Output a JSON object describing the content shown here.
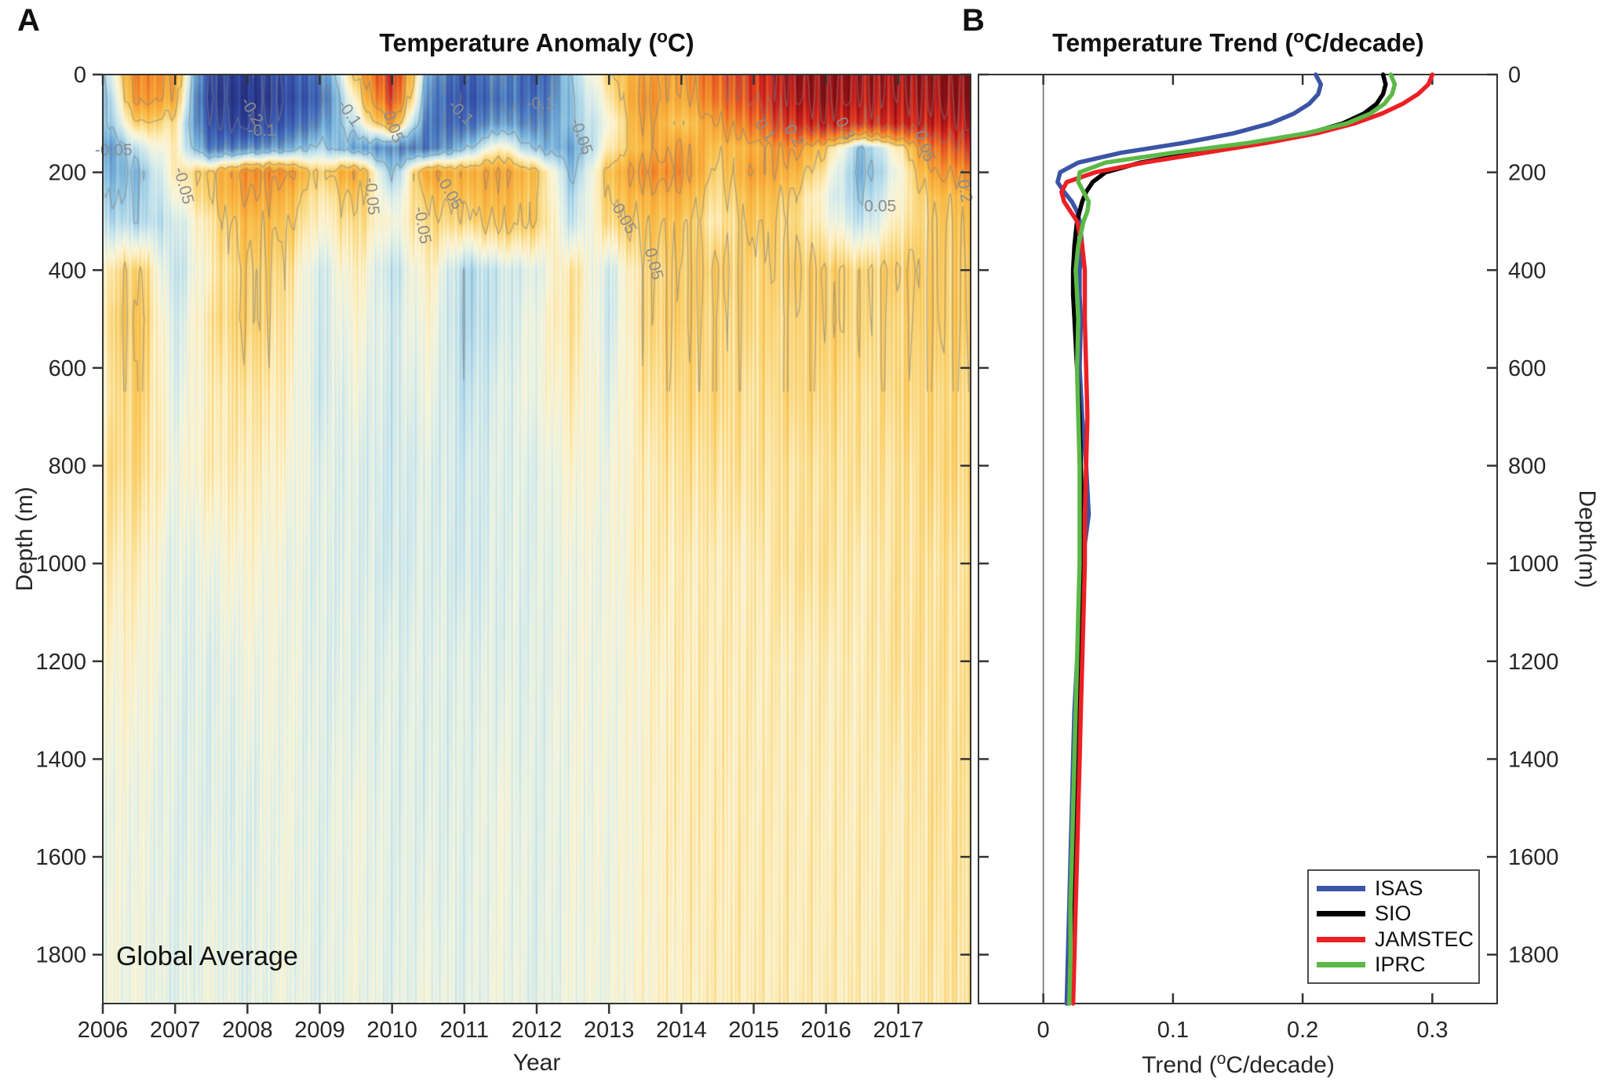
{
  "figure": {
    "panel_a_label": "A",
    "panel_b_label": "B"
  },
  "panel_a": {
    "title_parts": {
      "pre": "Temperature Anomaly (",
      "sup": "o",
      "post": "C)"
    },
    "xlabel": "Year",
    "ylabel": "Depth (m)",
    "annotation": "Global Average",
    "xticklabels": [
      "2006",
      "2007",
      "2008",
      "2009",
      "2010",
      "2011",
      "2012",
      "2013",
      "2014",
      "2015",
      "2016",
      "2017"
    ],
    "yticklabels": [
      "0",
      "200",
      "400",
      "600",
      "800",
      "1000",
      "1200",
      "1400",
      "1600",
      "1800"
    ]
  },
  "panel_b": {
    "title_parts": {
      "pre": "Temperature Trend (",
      "sup": "o",
      "post": "C/decade)"
    },
    "xlabel_parts": {
      "pre": "Trend (",
      "sup": "o",
      "post": "C/decade)"
    },
    "ylabel_right": "Depth(m)",
    "xticklabels": [
      "0",
      "0.1",
      "0.2",
      "0.3"
    ],
    "yticklabels": [
      "0",
      "200",
      "400",
      "600",
      "800",
      "1000",
      "1200",
      "1400",
      "1600",
      "1800"
    ],
    "legend": [
      "ISAS",
      "SIO",
      "JAMSTEC",
      "IPRC"
    ]
  },
  "chart_data": [
    {
      "type": "heatmap",
      "title": "Temperature Anomaly (°C)",
      "xlabel": "Year",
      "ylabel": "Depth (m)",
      "annotation": "Global Average",
      "xlim": [
        2006,
        2018
      ],
      "ylim": [
        0,
        1900
      ],
      "xticks": [
        2006,
        2007,
        2008,
        2009,
        2010,
        2011,
        2012,
        2013,
        2014,
        2015,
        2016,
        2017
      ],
      "yticks": [
        0,
        200,
        400,
        600,
        800,
        1000,
        1200,
        1400,
        1600,
        1800
      ],
      "x_years": [
        2006,
        2006.5,
        2007,
        2007.5,
        2008,
        2008.5,
        2009,
        2009.5,
        2010,
        2010.5,
        2011,
        2011.5,
        2012,
        2012.5,
        2013,
        2013.5,
        2014,
        2014.5,
        2015,
        2015.5,
        2016,
        2016.5,
        2017,
        2017.5,
        2018
      ],
      "depths": [
        0,
        50,
        100,
        150,
        200,
        250,
        300,
        400,
        500,
        650,
        800,
        1000,
        1200,
        1500,
        1900
      ],
      "anomaly_grid": [
        [
          -0.06,
          0.14,
          0.1,
          -0.2,
          -0.24,
          -0.18,
          -0.12,
          0.06,
          0.24,
          -0.08,
          -0.16,
          -0.1,
          -0.16,
          -0.04,
          0.04,
          0.1,
          0.1,
          0.17,
          0.22,
          0.3,
          0.34,
          0.3,
          0.3,
          0.32,
          0.35
        ],
        [
          -0.08,
          0.12,
          0.08,
          -0.22,
          -0.26,
          -0.2,
          -0.14,
          0.02,
          0.2,
          -0.1,
          -0.18,
          -0.12,
          -0.14,
          -0.05,
          0.02,
          0.12,
          0.08,
          0.15,
          0.2,
          0.28,
          0.32,
          0.28,
          0.28,
          0.3,
          0.33
        ],
        [
          -0.07,
          0.05,
          0.03,
          -0.18,
          -0.22,
          -0.16,
          -0.1,
          -0.02,
          0.1,
          -0.12,
          -0.14,
          -0.08,
          -0.11,
          -0.05,
          0.0,
          0.1,
          0.05,
          0.1,
          0.15,
          0.22,
          0.26,
          0.22,
          0.24,
          0.26,
          0.28
        ],
        [
          -0.1,
          -0.02,
          0.02,
          -0.12,
          -0.1,
          -0.08,
          -0.04,
          -0.08,
          -0.1,
          -0.12,
          -0.06,
          0.02,
          -0.06,
          -0.08,
          0.02,
          0.08,
          0.1,
          0.06,
          0.08,
          0.12,
          0.05,
          -0.06,
          0.02,
          0.15,
          0.2
        ],
        [
          -0.07,
          -0.06,
          0.02,
          0.06,
          0.12,
          0.12,
          0.04,
          0.1,
          -0.06,
          0.1,
          0.08,
          0.1,
          0.06,
          -0.06,
          0.06,
          0.12,
          0.12,
          0.04,
          0.1,
          0.08,
          0.02,
          -0.07,
          0.0,
          0.1,
          0.12
        ],
        [
          -0.05,
          -0.05,
          0.0,
          0.05,
          0.1,
          0.08,
          0.02,
          0.06,
          -0.02,
          0.06,
          0.06,
          0.08,
          0.05,
          -0.04,
          0.05,
          0.08,
          0.08,
          0.03,
          0.07,
          0.05,
          0.0,
          -0.05,
          0.01,
          0.06,
          0.07
        ],
        [
          -0.03,
          -0.04,
          -0.02,
          0.03,
          0.07,
          0.06,
          0.01,
          0.04,
          0.0,
          0.04,
          0.04,
          0.06,
          0.05,
          -0.03,
          0.04,
          0.06,
          0.06,
          0.02,
          0.06,
          0.04,
          0.01,
          -0.03,
          0.02,
          0.05,
          0.06
        ],
        [
          0.02,
          0.05,
          -0.03,
          0.02,
          0.05,
          0.04,
          -0.02,
          0.02,
          -0.03,
          0.02,
          -0.04,
          -0.02,
          -0.01,
          0.03,
          -0.02,
          0.04,
          0.05,
          0.05,
          0.04,
          0.05,
          0.05,
          0.04,
          0.05,
          0.05,
          0.05
        ],
        [
          0.03,
          0.06,
          -0.02,
          0.03,
          0.05,
          0.03,
          -0.02,
          0.01,
          -0.02,
          0.01,
          -0.04,
          -0.02,
          0.0,
          0.03,
          -0.02,
          0.04,
          0.05,
          0.04,
          0.04,
          0.04,
          0.05,
          0.04,
          0.04,
          0.05,
          0.05
        ],
        [
          0.02,
          0.05,
          -0.01,
          0.02,
          0.03,
          0.02,
          -0.02,
          0.0,
          -0.02,
          0.0,
          -0.03,
          -0.01,
          0.0,
          0.02,
          -0.01,
          0.03,
          0.04,
          0.04,
          0.03,
          0.04,
          0.04,
          0.03,
          0.04,
          0.04,
          0.04
        ],
        [
          0.03,
          0.04,
          0.0,
          0.02,
          0.02,
          0.01,
          -0.01,
          -0.01,
          -0.02,
          -0.01,
          -0.02,
          -0.01,
          -0.01,
          0.01,
          0.0,
          0.02,
          0.03,
          0.03,
          0.03,
          0.03,
          0.03,
          0.03,
          0.03,
          0.04,
          0.04
        ],
        [
          0.02,
          0.02,
          -0.01,
          0.0,
          0.01,
          0.0,
          -0.01,
          -0.01,
          -0.02,
          -0.01,
          -0.02,
          -0.01,
          -0.01,
          0.0,
          0.0,
          0.02,
          0.02,
          0.02,
          0.02,
          0.03,
          0.03,
          0.02,
          0.03,
          0.03,
          0.03
        ],
        [
          0.01,
          0.01,
          -0.01,
          -0.01,
          0.0,
          0.0,
          -0.01,
          -0.01,
          -0.01,
          -0.01,
          -0.01,
          -0.01,
          -0.01,
          0.0,
          0.0,
          0.01,
          0.02,
          0.02,
          0.02,
          0.02,
          0.02,
          0.02,
          0.03,
          0.03,
          0.03
        ],
        [
          0.0,
          0.0,
          -0.01,
          -0.01,
          -0.01,
          0.0,
          -0.01,
          0.0,
          -0.01,
          -0.01,
          -0.01,
          0.0,
          -0.01,
          0.0,
          0.0,
          0.01,
          0.02,
          0.02,
          0.02,
          0.02,
          0.02,
          0.02,
          0.02,
          0.03,
          0.03
        ],
        [
          0.0,
          0.0,
          -0.01,
          0.0,
          -0.01,
          0.0,
          -0.01,
          0.0,
          -0.01,
          0.0,
          -0.01,
          0.0,
          -0.01,
          0.0,
          0.0,
          0.01,
          0.015,
          0.02,
          0.02,
          0.02,
          0.02,
          0.02,
          0.02,
          0.025,
          0.03
        ]
      ],
      "contour_levels": [
        -0.2,
        -0.1,
        -0.05,
        0.05,
        0.1,
        0.2,
        0.3
      ],
      "contour_labels": [
        {
          "text": "-0.05",
          "year": 2006.15,
          "depth": 165,
          "rot": 0
        },
        {
          "text": "-0.05",
          "year": 2007.05,
          "depth": 230,
          "rot": 75
        },
        {
          "text": "-0.2",
          "year": 2008.0,
          "depth": 80,
          "rot": 60
        },
        {
          "text": "-0.1",
          "year": 2008.2,
          "depth": 125,
          "rot": 0
        },
        {
          "text": "-0.1",
          "year": 2009.35,
          "depth": 85,
          "rot": 55
        },
        {
          "text": "-0.05",
          "year": 2009.65,
          "depth": 250,
          "rot": 85
        },
        {
          "text": "0.05",
          "year": 2009.95,
          "depth": 110,
          "rot": 70
        },
        {
          "text": "-0.05",
          "year": 2010.35,
          "depth": 310,
          "rot": 80
        },
        {
          "text": "0.05",
          "year": 2010.75,
          "depth": 250,
          "rot": 60
        },
        {
          "text": "-0.1",
          "year": 2010.9,
          "depth": 85,
          "rot": 45
        },
        {
          "text": "-0.1",
          "year": 2012.05,
          "depth": 70,
          "rot": 0
        },
        {
          "text": "-0.05",
          "year": 2012.55,
          "depth": 130,
          "rot": 70
        },
        {
          "text": "0.05",
          "year": 2013.15,
          "depth": 300,
          "rot": 60
        },
        {
          "text": "0.05",
          "year": 2013.55,
          "depth": 390,
          "rot": 75
        },
        {
          "text": "0.1",
          "year": 2015.1,
          "depth": 120,
          "rot": 55
        },
        {
          "text": "0.2",
          "year": 2015.5,
          "depth": 130,
          "rot": 60
        },
        {
          "text": "0.3",
          "year": 2016.2,
          "depth": 115,
          "rot": 65
        },
        {
          "text": "0.05",
          "year": 2016.75,
          "depth": 280,
          "rot": 0
        },
        {
          "text": "0.05",
          "year": 2017.3,
          "depth": 150,
          "rot": 70
        },
        {
          "text": "0.2",
          "year": 2017.85,
          "depth": 240,
          "rot": 80
        }
      ],
      "colormap": [
        [
          -0.32,
          "#232a72"
        ],
        [
          -0.24,
          "#2b3a8f"
        ],
        [
          -0.17,
          "#3854ab"
        ],
        [
          -0.12,
          "#4a76bd"
        ],
        [
          -0.08,
          "#6ea7d4"
        ],
        [
          -0.05,
          "#97c9e4"
        ],
        [
          -0.03,
          "#bfe0ec"
        ],
        [
          -0.015,
          "#d9ecea"
        ],
        [
          -0.004,
          "#e9f3e4"
        ],
        [
          0.006,
          "#faf5da"
        ],
        [
          0.02,
          "#fdedbb"
        ],
        [
          0.035,
          "#fbdc8a"
        ],
        [
          0.055,
          "#f9c656"
        ],
        [
          0.08,
          "#f8b13e"
        ],
        [
          0.12,
          "#f3922f"
        ],
        [
          0.16,
          "#ec6b27"
        ],
        [
          0.2,
          "#e14523"
        ],
        [
          0.25,
          "#cc241f"
        ],
        [
          0.3,
          "#a51418"
        ],
        [
          0.36,
          "#7c0e12"
        ]
      ]
    },
    {
      "type": "line",
      "title": "Temperature Trend (°C/decade)",
      "xlabel": "Trend (°C/decade)",
      "ylabel_right": "Depth(m)",
      "xlim": [
        -0.05,
        0.35
      ],
      "ylim": [
        0,
        1900
      ],
      "xticks": [
        0,
        0.1,
        0.2,
        0.3
      ],
      "yticks": [
        0,
        200,
        400,
        600,
        800,
        1000,
        1200,
        1400,
        1600,
        1800
      ],
      "legend_position": "bottom-right",
      "zero_line": 0,
      "depth": [
        0,
        20,
        40,
        60,
        80,
        100,
        120,
        140,
        160,
        180,
        200,
        220,
        240,
        260,
        280,
        300,
        350,
        400,
        450,
        500,
        600,
        700,
        800,
        900,
        1000,
        1100,
        1200,
        1300,
        1400,
        1500,
        1600,
        1700,
        1800,
        1900
      ],
      "series": [
        {
          "name": "ISAS",
          "color": "#3b54a5",
          "trend": [
            0.21,
            0.214,
            0.212,
            0.205,
            0.193,
            0.175,
            0.147,
            0.108,
            0.06,
            0.027,
            0.013,
            0.011,
            0.016,
            0.022,
            0.026,
            0.028,
            0.03,
            0.028,
            0.028,
            0.029,
            0.028,
            0.03,
            0.033,
            0.035,
            0.03,
            0.028,
            0.026,
            0.024,
            0.023,
            0.022,
            0.021,
            0.02,
            0.019,
            0.018
          ]
        },
        {
          "name": "SIO",
          "color": "#000000",
          "trend": [
            0.262,
            0.264,
            0.262,
            0.257,
            0.247,
            0.231,
            0.205,
            0.166,
            0.118,
            0.075,
            0.048,
            0.038,
            0.033,
            0.03,
            0.028,
            0.026,
            0.024,
            0.023,
            0.023,
            0.024,
            0.026,
            0.028,
            0.029,
            0.03,
            0.03,
            0.029,
            0.028,
            0.026,
            0.025,
            0.024,
            0.023,
            0.022,
            0.021,
            0.02
          ]
        },
        {
          "name": "JAMSTEC",
          "color": "#ec2024",
          "trend": [
            0.3,
            0.297,
            0.289,
            0.277,
            0.261,
            0.24,
            0.211,
            0.172,
            0.125,
            0.078,
            0.04,
            0.018,
            0.014,
            0.016,
            0.021,
            0.026,
            0.03,
            0.032,
            0.032,
            0.032,
            0.033,
            0.034,
            0.033,
            0.032,
            0.032,
            0.031,
            0.03,
            0.029,
            0.028,
            0.027,
            0.026,
            0.025,
            0.024,
            0.023
          ]
        },
        {
          "name": "IPRC",
          "color": "#5cb947",
          "trend": [
            0.268,
            0.271,
            0.269,
            0.263,
            0.252,
            0.234,
            0.203,
            0.158,
            0.1,
            0.048,
            0.028,
            0.027,
            0.031,
            0.035,
            0.034,
            0.031,
            0.027,
            0.025,
            0.026,
            0.027,
            0.026,
            0.027,
            0.028,
            0.028,
            0.028,
            0.027,
            0.026,
            0.025,
            0.024,
            0.023,
            0.022,
            0.021,
            0.021,
            0.02
          ]
        }
      ]
    }
  ]
}
